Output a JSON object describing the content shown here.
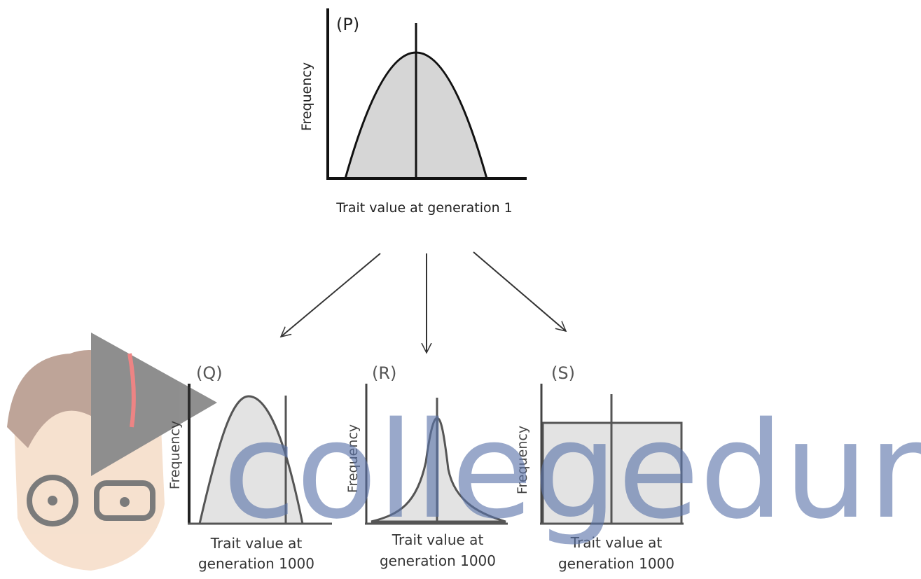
{
  "panels": [
    {
      "label": "(P)",
      "y_label": "Frequency",
      "x_label": [
        "Trait value at generation 1"
      ]
    },
    {
      "label": "(Q)",
      "y_label": "Frequency",
      "x_label": [
        "Trait value at",
        "generation 1000"
      ]
    },
    {
      "label": "(R)",
      "y_label": "Frequency",
      "x_label": [
        "Trait value at",
        "generation 1000"
      ]
    },
    {
      "label": "(S)",
      "y_label": "Frequency",
      "x_label": [
        "Trait value at",
        "generation 1000"
      ]
    }
  ],
  "watermark": "collegedunia"
}
